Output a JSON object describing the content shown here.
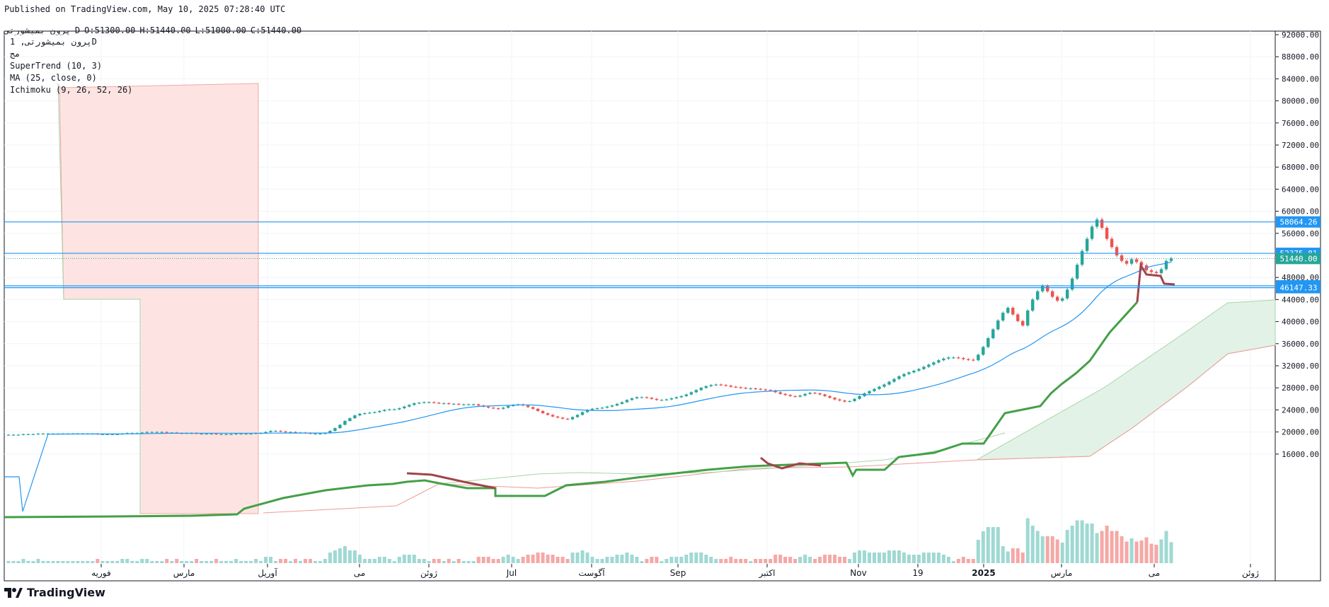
{
  "header": {
    "published": "Published on TradingView.com, May 10, 2025 07:28:40 UTC",
    "symbol": "پرون بمیشورتی",
    "interval": "D",
    "open": "O:51300.00",
    "high": "H:51440.00",
    "low": "L:51000.00",
    "close": "C:51440.00"
  },
  "legend": {
    "title": "پرون بمیشورتی, 1D",
    "line2": "مج",
    "supertrend": "SuperTrend (10, 3)",
    "ma": "MA (25, close, 0)",
    "ichimoku": "Ichimoku (9, 26, 52, 26)"
  },
  "brand": "TradingView",
  "colors": {
    "up": "#26a69a",
    "down": "#ef5350",
    "supertrend_up": "#43a047",
    "supertrend_down": "#a0444a",
    "ma": "#2196f3",
    "hline": "#2196f3",
    "price_label": "#26a69a",
    "cloud_up": "#e3f2e6",
    "cloud_down": "#fde4e2"
  },
  "chart_data": {
    "type": "candlestick",
    "y_axis": {
      "ticks": [
        "92000.00",
        "88000.00",
        "84000.00",
        "80000.00",
        "76000.00",
        "72000.00",
        "68000.00",
        "64000.00",
        "60000.00",
        "56000.00",
        "52000.00",
        "48000.00",
        "44000.00",
        "40000.00",
        "36000.00",
        "32000.00",
        "28000.00",
        "24000.00",
        "20000.00",
        "16000.00"
      ],
      "ylim": [
        12000,
        92000
      ]
    },
    "x_axis": {
      "labels": [
        "فوریه",
        "مارس",
        "آوریل",
        "می",
        "ژوئن",
        "Jul",
        "آگوست",
        "Sep",
        "اکتبر",
        "Nov",
        "19",
        "2025",
        "مارس",
        "می",
        "ژوئن"
      ]
    },
    "horizontal_lines": [
      {
        "value": 58064.26,
        "label": "58064.26"
      },
      {
        "value": 52375.81,
        "label": "52375.81"
      },
      {
        "value": 46482.56,
        "label": "46482.56"
      },
      {
        "value": 46147.33,
        "label": "46147.33"
      }
    ],
    "last_price": {
      "value": 51440.0,
      "label": "51440.00"
    },
    "close_series": [
      19500,
      19500,
      19500,
      19600,
      19600,
      19600,
      19700,
      19700,
      19700,
      19700,
      19700,
      19700,
      19700,
      19700,
      19700,
      19700,
      19700,
      19700,
      19600,
      19600,
      19600,
      19600,
      19600,
      19700,
      19800,
      19800,
      19800,
      19900,
      20000,
      20000,
      20000,
      20000,
      19900,
      19900,
      19800,
      19800,
      19800,
      19800,
      19700,
      19700,
      19700,
      19700,
      19600,
      19600,
      19600,
      19600,
      19700,
      19700,
      19700,
      19700,
      19800,
      19800,
      20000,
      20200,
      20200,
      20100,
      20000,
      20000,
      19900,
      19900,
      19800,
      19700,
      19700,
      19700,
      19800,
      20200,
      20700,
      21300,
      22000,
      22500,
      23000,
      23300,
      23400,
      23500,
      23600,
      23800,
      24000,
      24100,
      24100,
      24300,
      24600,
      24900,
      25200,
      25300,
      25400,
      25400,
      25300,
      25200,
      25200,
      25100,
      25100,
      25000,
      25000,
      25000,
      25000,
      24800,
      24600,
      24400,
      24300,
      24200,
      24400,
      24700,
      24900,
      25000,
      24800,
      24500,
      24200,
      23800,
      23400,
      23100,
      22800,
      22600,
      22400,
      22300,
      22700,
      23100,
      23600,
      24000,
      24200,
      24300,
      24400,
      24600,
      24800,
      25100,
      25400,
      25800,
      26100,
      26300,
      26300,
      26200,
      26000,
      25800,
      25800,
      25900,
      26100,
      26300,
      26500,
      26800,
      27200,
      27600,
      28000,
      28300,
      28500,
      28600,
      28500,
      28400,
      28200,
      28100,
      28000,
      27900,
      27900,
      27800,
      27700,
      27600,
      27500,
      27200,
      26900,
      26700,
      26500,
      26400,
      26600,
      26900,
      27100,
      27000,
      26800,
      26500,
      26200,
      25900,
      25700,
      25500,
      25600,
      26000,
      26500,
      27000,
      27400,
      27800,
      28200,
      28600,
      29100,
      29600,
      30100,
      30500,
      30800,
      31100,
      31400,
      31800,
      32200,
      32600,
      33000,
      33300,
      33500,
      33500,
      33400,
      33200,
      33100,
      33000,
      34000,
      35400,
      37000,
      38600,
      40200,
      41600,
      42500,
      41300,
      40100,
      39300,
      42000,
      44000,
      45500,
      46500,
      45500,
      44500,
      43800,
      44200,
      45800,
      47800,
      50300,
      52800,
      55000,
      57200,
      58500,
      57000,
      55000,
      53500,
      52000,
      51000,
      50500,
      51300,
      50800,
      50200,
      49300,
      49000,
      48800,
      49500,
      51000,
      51440
    ]
  }
}
